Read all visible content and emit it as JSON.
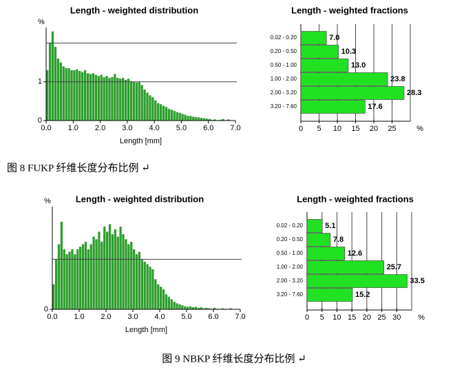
{
  "chart_data": [
    {
      "type": "histogram",
      "title": "Length - weighted distribution",
      "xlabel": "Length [mm]",
      "ylabel": "%",
      "color": "#2e9e2e",
      "bins": [
        0,
        0.1,
        0.2,
        0.3,
        0.4,
        0.5,
        0.6,
        0.7,
        0.8,
        0.9,
        1.0,
        1.1,
        1.2,
        1.3,
        1.4,
        1.5,
        1.6,
        1.7,
        1.8,
        1.9,
        2.0,
        2.1,
        2.2,
        2.3,
        2.4,
        2.5,
        2.6,
        2.7,
        2.8,
        2.9,
        3.0,
        3.1,
        3.2,
        3.3,
        3.4,
        3.5,
        3.6,
        3.7,
        3.8,
        3.9,
        4.0,
        4.1,
        4.2,
        4.3,
        4.4,
        4.5,
        4.6,
        4.7,
        4.8,
        4.9,
        5.0,
        5.1,
        5.2,
        5.3,
        5.4,
        5.5,
        5.6,
        5.7,
        5.8,
        5.9,
        6.0,
        6.1,
        6.2,
        6.3,
        6.4,
        6.5,
        6.6,
        6.7,
        6.8,
        6.9,
        7.0
      ],
      "counts": [
        1.3,
        2.0,
        2.3,
        1.9,
        1.6,
        1.5,
        1.4,
        1.35,
        1.35,
        1.3,
        1.3,
        1.32,
        1.28,
        1.25,
        1.3,
        1.22,
        1.2,
        1.22,
        1.18,
        1.15,
        1.18,
        1.12,
        1.15,
        1.1,
        1.12,
        1.2,
        1.1,
        1.08,
        1.1,
        1.05,
        1.08,
        1.02,
        1.0,
        0.98,
        1.0,
        0.92,
        0.8,
        0.72,
        0.65,
        0.6,
        0.52,
        0.45,
        0.42,
        0.38,
        0.35,
        0.3,
        0.28,
        0.25,
        0.22,
        0.2,
        0.17,
        0.15,
        0.12,
        0.12,
        0.1,
        0.09,
        0.08,
        0.07,
        0.06,
        0.05,
        0.04,
        0.02,
        0.03,
        0.01,
        0.02,
        0.04,
        0.01,
        0.03,
        0,
        0
      ],
      "xlim": [
        0,
        7
      ],
      "xticks": [
        {
          "value": 0,
          "label": "0.0"
        },
        {
          "value": 1,
          "label": "1.0"
        },
        {
          "value": 2,
          "label": "2.0"
        },
        {
          "value": 3,
          "label": "3.0"
        },
        {
          "value": 4,
          "label": "4.0"
        },
        {
          "value": 5,
          "label": "5.0"
        },
        {
          "value": 6,
          "label": "6.0"
        },
        {
          "value": 7,
          "label": "7.0"
        }
      ],
      "ylim": [
        0,
        2.4
      ],
      "yticks": [
        0,
        1
      ],
      "ygrid": [
        1,
        2
      ]
    },
    {
      "type": "hbar",
      "title": "Length - weighted fractions",
      "unit": "%",
      "color": "#22e022",
      "categories": [
        "0.02 - 0.20",
        "0.20 - 0.50",
        "0.50 - 1.00",
        "1.00 - 2.00",
        "2.00 - 3.20",
        "3.20 - 7.60"
      ],
      "values": [
        7.0,
        10.3,
        13.0,
        23.8,
        28.3,
        17.6
      ],
      "value_labels": [
        "7.0",
        "10.3",
        "13.0",
        "23.8",
        "28.3",
        "17.6"
      ],
      "xlim": [
        0,
        30
      ],
      "xticks": [
        0,
        5,
        10,
        15,
        20,
        25
      ],
      "grid": true
    },
    {
      "type": "histogram",
      "title": "Length - weighted distribution",
      "xlabel": "Length [mm]",
      "ylabel": "%",
      "color": "#2e9e2e",
      "bins": [
        0,
        0.1,
        0.2,
        0.3,
        0.4,
        0.5,
        0.6,
        0.7,
        0.8,
        0.9,
        1.0,
        1.1,
        1.2,
        1.3,
        1.4,
        1.5,
        1.6,
        1.7,
        1.8,
        1.9,
        2.0,
        2.1,
        2.2,
        2.3,
        2.4,
        2.5,
        2.6,
        2.7,
        2.8,
        2.9,
        3.0,
        3.1,
        3.2,
        3.3,
        3.4,
        3.5,
        3.6,
        3.7,
        3.8,
        3.9,
        4.0,
        4.1,
        4.2,
        4.3,
        4.4,
        4.5,
        4.6,
        4.7,
        4.8,
        4.9,
        5.0,
        5.1,
        5.2,
        5.3,
        5.4,
        5.5,
        5.6,
        5.7,
        5.8,
        5.9,
        6.0,
        6.1,
        6.2,
        6.3,
        6.4,
        6.5,
        6.6,
        6.7,
        6.8,
        6.9,
        7.0
      ],
      "counts": [
        0.5,
        1.0,
        1.3,
        1.75,
        1.2,
        1.1,
        1.15,
        1.2,
        1.1,
        1.2,
        1.25,
        1.3,
        1.35,
        1.2,
        1.3,
        1.45,
        1.4,
        1.55,
        1.35,
        1.65,
        1.55,
        1.7,
        1.5,
        1.6,
        1.45,
        1.65,
        1.5,
        1.4,
        1.3,
        1.35,
        1.2,
        1.1,
        1.15,
        1.0,
        0.95,
        0.9,
        0.85,
        0.8,
        0.6,
        0.5,
        0.45,
        0.4,
        0.3,
        0.25,
        0.2,
        0.15,
        0.12,
        0.1,
        0.08,
        0.06,
        0.05,
        0.06,
        0.04,
        0.05,
        0.03,
        0.04,
        0.02,
        0.03,
        0.02,
        0.01,
        0.03,
        0.01,
        0,
        0.02,
        0.01,
        0,
        0.02,
        0,
        0,
        0
      ],
      "xlim": [
        0,
        7
      ],
      "xticks": [
        {
          "value": 0,
          "label": "0.0"
        },
        {
          "value": 1,
          "label": "1.0"
        },
        {
          "value": 2,
          "label": "2.0"
        },
        {
          "value": 3,
          "label": "3.0"
        },
        {
          "value": 4,
          "label": "4.0"
        },
        {
          "value": 5,
          "label": "5.0"
        },
        {
          "value": 6,
          "label": "6.0"
        },
        {
          "value": 7,
          "label": "7.0"
        }
      ],
      "ylim": [
        0,
        2.05
      ],
      "yticks": [
        0
      ],
      "ygrid": [
        1
      ]
    },
    {
      "type": "hbar",
      "title": "Length - weighted fractions",
      "unit": "%",
      "color": "#22e022",
      "categories": [
        "0.02 - 0.20",
        "0.20 - 0.50",
        "0.50 - 1.00",
        "1.00 - 2.00",
        "2.00 - 3.20",
        "3.20 - 7.60"
      ],
      "values": [
        5.1,
        7.8,
        12.6,
        25.7,
        33.5,
        15.2
      ],
      "value_labels": [
        "5.1",
        "7.8",
        "12.6",
        "25.7",
        "33.5",
        "15.2"
      ],
      "xlim": [
        0,
        35
      ],
      "xticks": [
        0,
        5,
        10,
        15,
        20,
        25,
        30
      ],
      "grid": true
    }
  ],
  "captions": [
    "图 8  FUKP 纤维长度分布比例 ↵",
    "图 9  NBKP 纤维长度分布比例 ↵"
  ]
}
